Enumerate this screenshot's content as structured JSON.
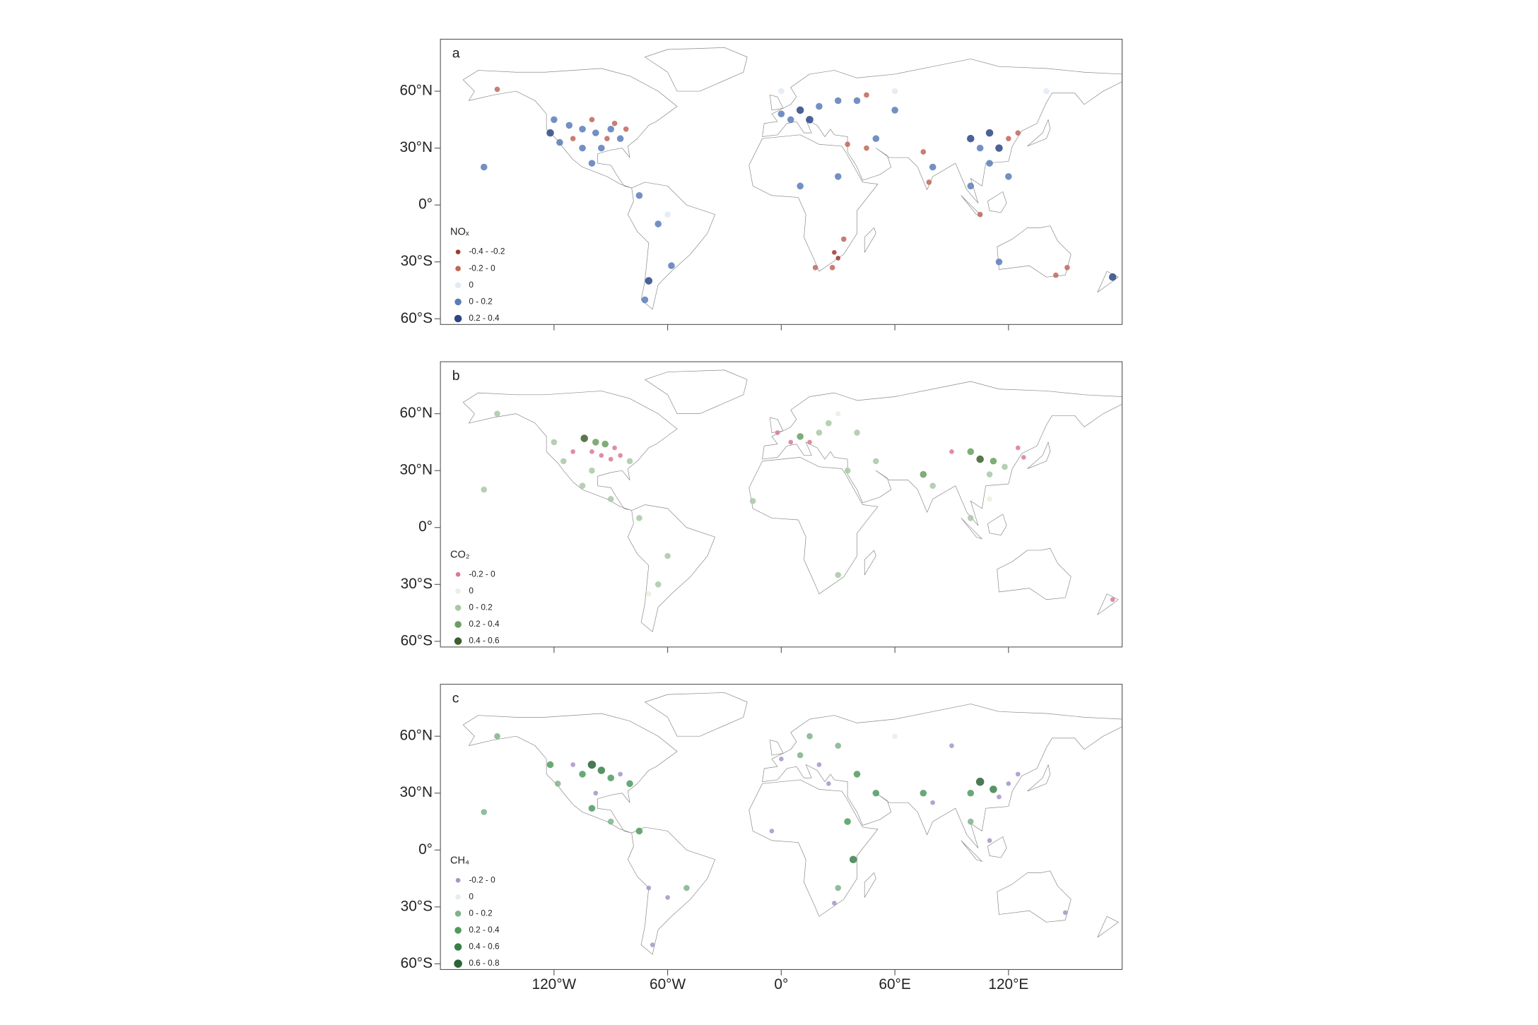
{
  "chart_data": [
    {
      "type": "map",
      "label": "a",
      "legend_title": "NOₓ",
      "xlim": [
        -180,
        180
      ],
      "ylim": [
        -63,
        87.4
      ],
      "yticks": [
        {
          "value": 60,
          "label": "60°N"
        },
        {
          "value": 30,
          "label": "30°N"
        },
        {
          "value": 0,
          "label": "0°"
        },
        {
          "value": -30,
          "label": "30°S"
        },
        {
          "value": -60,
          "label": "60°S"
        }
      ],
      "legend": [
        {
          "label": "-0.4 - -0.2",
          "color": "#9e3a35"
        },
        {
          "label": "-0.2 - 0",
          "color": "#c0675a"
        },
        {
          "label": "0",
          "color": "#e3eaf3"
        },
        {
          "label": "0 - 0.2",
          "color": "#5a7cb8"
        },
        {
          "label": "0.2 - 0.4",
          "color": "#2d4585"
        }
      ],
      "points": [
        [
          -120,
          45,
          3
        ],
        [
          -112,
          42,
          3
        ],
        [
          -105,
          40,
          3
        ],
        [
          -98,
          38,
          3
        ],
        [
          -90,
          40,
          3
        ],
        [
          -85,
          35,
          3
        ],
        [
          -95,
          30,
          3
        ],
        [
          -100,
          45,
          1
        ],
        [
          -88,
          43,
          1
        ],
        [
          -82,
          40,
          1
        ],
        [
          -92,
          35,
          1
        ],
        [
          -110,
          35,
          1
        ],
        [
          -117,
          33,
          3
        ],
        [
          -122,
          38,
          4
        ],
        [
          -105,
          30,
          3
        ],
        [
          -100,
          22,
          3
        ],
        [
          -75,
          5,
          3
        ],
        [
          -65,
          -10,
          3
        ],
        [
          -58,
          -32,
          3
        ],
        [
          -70,
          -40,
          4
        ],
        [
          -72,
          -50,
          3
        ],
        [
          -150,
          61,
          1
        ],
        [
          -157,
          20,
          3
        ],
        [
          0,
          48,
          3
        ],
        [
          10,
          50,
          4
        ],
        [
          20,
          52,
          3
        ],
        [
          30,
          55,
          3
        ],
        [
          5,
          45,
          3
        ],
        [
          15,
          45,
          4
        ],
        [
          40,
          55,
          3
        ],
        [
          45,
          58,
          1
        ],
        [
          35,
          32,
          1
        ],
        [
          45,
          30,
          1
        ],
        [
          50,
          35,
          3
        ],
        [
          30,
          15,
          3
        ],
        [
          10,
          10,
          3
        ],
        [
          75,
          28,
          1
        ],
        [
          80,
          20,
          3
        ],
        [
          78,
          12,
          1
        ],
        [
          100,
          35,
          4
        ],
        [
          110,
          38,
          4
        ],
        [
          115,
          30,
          4
        ],
        [
          105,
          30,
          3
        ],
        [
          120,
          35,
          1
        ],
        [
          125,
          38,
          1
        ],
        [
          110,
          22,
          3
        ],
        [
          100,
          10,
          3
        ],
        [
          120,
          15,
          3
        ],
        [
          105,
          -5,
          1
        ],
        [
          60,
          50,
          3
        ],
        [
          28,
          -25,
          0
        ],
        [
          30,
          -28,
          0
        ],
        [
          27,
          -33,
          1
        ],
        [
          18,
          -33,
          1
        ],
        [
          33,
          -18,
          1
        ],
        [
          145,
          -37,
          1
        ],
        [
          151,
          -33,
          1
        ],
        [
          115,
          -30,
          3
        ],
        [
          175,
          -38,
          4
        ],
        [
          0,
          60,
          2
        ],
        [
          60,
          60,
          2
        ],
        [
          140,
          60,
          2
        ],
        [
          -60,
          -5,
          2
        ]
      ]
    },
    {
      "type": "map",
      "label": "b",
      "legend_title": "CO₂",
      "xlim": [
        -180,
        180
      ],
      "ylim": [
        -63,
        87.4
      ],
      "yticks": [
        {
          "value": 60,
          "label": "60°N"
        },
        {
          "value": 30,
          "label": "30°N"
        },
        {
          "value": 0,
          "label": "0°"
        },
        {
          "value": -30,
          "label": "30°S"
        },
        {
          "value": -60,
          "label": "60°S"
        }
      ],
      "legend": [
        {
          "label": "-0.2 - 0",
          "color": "#d97a93"
        },
        {
          "label": "0",
          "color": "#eceee2"
        },
        {
          "label": "0 - 0.2",
          "color": "#a8c8a4"
        },
        {
          "label": "0.2 - 0.4",
          "color": "#6a9e62"
        },
        {
          "label": "0.4 - 0.6",
          "color": "#3d5e2e"
        }
      ],
      "points": [
        [
          -100,
          40,
          0
        ],
        [
          -95,
          38,
          0
        ],
        [
          -90,
          36,
          0
        ],
        [
          -88,
          42,
          0
        ],
        [
          -85,
          38,
          0
        ],
        [
          -110,
          40,
          0
        ],
        [
          -98,
          45,
          3
        ],
        [
          -104,
          47,
          4
        ],
        [
          -93,
          44,
          3
        ],
        [
          -115,
          35,
          2
        ],
        [
          -120,
          45,
          2
        ],
        [
          -80,
          35,
          2
        ],
        [
          -100,
          30,
          2
        ],
        [
          -105,
          22,
          2
        ],
        [
          -90,
          15,
          2
        ],
        [
          -75,
          5,
          2
        ],
        [
          -60,
          -15,
          2
        ],
        [
          -65,
          -30,
          2
        ],
        [
          -70,
          -35,
          1
        ],
        [
          -150,
          60,
          2
        ],
        [
          -157,
          20,
          2
        ],
        [
          -2,
          50,
          0
        ],
        [
          5,
          45,
          0
        ],
        [
          10,
          48,
          3
        ],
        [
          20,
          50,
          2
        ],
        [
          25,
          55,
          2
        ],
        [
          15,
          45,
          0
        ],
        [
          30,
          60,
          1
        ],
        [
          40,
          50,
          2
        ],
        [
          50,
          35,
          2
        ],
        [
          35,
          30,
          2
        ],
        [
          75,
          28,
          3
        ],
        [
          80,
          22,
          2
        ],
        [
          100,
          40,
          3
        ],
        [
          105,
          36,
          4
        ],
        [
          112,
          35,
          3
        ],
        [
          110,
          28,
          2
        ],
        [
          118,
          32,
          2
        ],
        [
          125,
          42,
          0
        ],
        [
          128,
          37,
          0
        ],
        [
          90,
          40,
          0
        ],
        [
          110,
          15,
          1
        ],
        [
          100,
          5,
          2
        ],
        [
          175,
          -38,
          0
        ],
        [
          -15,
          14,
          2
        ],
        [
          30,
          -25,
          2
        ]
      ]
    },
    {
      "type": "map",
      "label": "c",
      "legend_title": "CH₄",
      "xlim": [
        -180,
        180
      ],
      "ylim": [
        -63,
        87.4
      ],
      "yticks": [
        {
          "value": 60,
          "label": "60°N"
        },
        {
          "value": 30,
          "label": "30°N"
        },
        {
          "value": 0,
          "label": "0°"
        },
        {
          "value": -30,
          "label": "30°S"
        },
        {
          "value": -60,
          "label": "60°S"
        }
      ],
      "xticks": [
        {
          "value": -120,
          "label": "120°W"
        },
        {
          "value": -60,
          "label": "60°W"
        },
        {
          "value": 0,
          "label": "0°"
        },
        {
          "value": 60,
          "label": "60°E"
        },
        {
          "value": 120,
          "label": "120°E"
        }
      ],
      "legend": [
        {
          "label": "-0.2 - 0",
          "color": "#a893c7"
        },
        {
          "label": "0",
          "color": "#e4efe7"
        },
        {
          "label": "0 - 0.2",
          "color": "#7fb38a"
        },
        {
          "label": "0.2 - 0.4",
          "color": "#4f9a5f"
        },
        {
          "label": "0.4 - 0.6",
          "color": "#3a8049"
        },
        {
          "label": "0.6 - 0.8",
          "color": "#2a6336"
        }
      ],
      "points": [
        [
          -100,
          45,
          5
        ],
        [
          -95,
          42,
          4
        ],
        [
          -105,
          40,
          3
        ],
        [
          -90,
          38,
          3
        ],
        [
          -85,
          40,
          0
        ],
        [
          -110,
          45,
          0
        ],
        [
          -98,
          30,
          0
        ],
        [
          -80,
          35,
          3
        ],
        [
          -118,
          35,
          2
        ],
        [
          -122,
          45,
          3
        ],
        [
          -100,
          22,
          3
        ],
        [
          -90,
          15,
          2
        ],
        [
          -75,
          10,
          3
        ],
        [
          -70,
          -20,
          0
        ],
        [
          -60,
          -25,
          0
        ],
        [
          -50,
          -20,
          2
        ],
        [
          -68,
          -50,
          0
        ],
        [
          -150,
          60,
          2
        ],
        [
          -157,
          20,
          2
        ],
        [
          0,
          48,
          0
        ],
        [
          10,
          50,
          2
        ],
        [
          20,
          45,
          0
        ],
        [
          30,
          55,
          2
        ],
        [
          40,
          40,
          3
        ],
        [
          50,
          30,
          3
        ],
        [
          25,
          35,
          0
        ],
        [
          15,
          60,
          2
        ],
        [
          35,
          15,
          3
        ],
        [
          -5,
          10,
          0
        ],
        [
          38,
          -5,
          4
        ],
        [
          30,
          -20,
          2
        ],
        [
          28,
          -28,
          0
        ],
        [
          80,
          25,
          0
        ],
        [
          75,
          30,
          3
        ],
        [
          105,
          36,
          5
        ],
        [
          112,
          32,
          4
        ],
        [
          115,
          28,
          0
        ],
        [
          100,
          30,
          3
        ],
        [
          120,
          35,
          0
        ],
        [
          125,
          40,
          0
        ],
        [
          100,
          15,
          2
        ],
        [
          110,
          5,
          0
        ],
        [
          150,
          -33,
          0
        ],
        [
          60,
          60,
          1
        ],
        [
          90,
          55,
          0
        ]
      ]
    }
  ]
}
